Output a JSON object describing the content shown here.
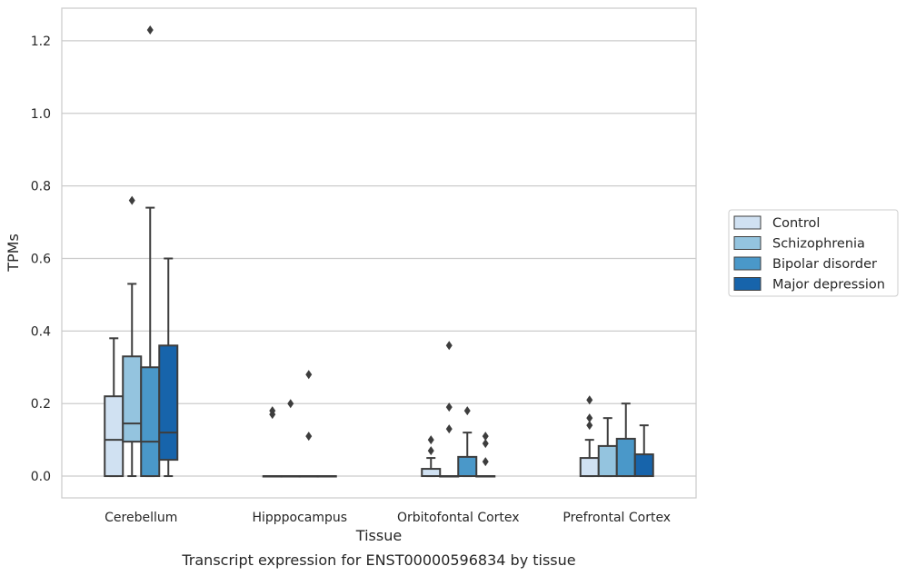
{
  "chart_data": {
    "type": "boxplot",
    "caption": "Transcript expression for ENST00000596834 by tissue",
    "xlabel": "Tissue",
    "ylabel": "TPMs",
    "ylim": [
      -0.06,
      1.29
    ],
    "yticks": [
      "0.0",
      "0.2",
      "0.4",
      "0.6",
      "0.8",
      "1.0",
      "1.2"
    ],
    "grid": "horizontal",
    "legend_position": "right-center",
    "categories": [
      "Cerebellum",
      "Hipppocampus",
      "Orbitofontal Cortex",
      "Prefrontal Cortex"
    ],
    "series": [
      {
        "name": "Control",
        "color": "#d0e1f2",
        "boxes": [
          {
            "whislo": 0.0,
            "q1": 0.0,
            "med": 0.1,
            "q3": 0.22,
            "whishi": 0.38,
            "fliers": []
          },
          {
            "whislo": 0.0,
            "q1": 0.0,
            "med": 0.0,
            "q3": 0.0,
            "whishi": 0.0,
            "fliers": [
              0.17,
              0.18
            ]
          },
          {
            "whislo": 0.0,
            "q1": 0.0,
            "med": 0.0,
            "q3": 0.02,
            "whishi": 0.05,
            "fliers": [
              0.07,
              0.1
            ]
          },
          {
            "whislo": 0.0,
            "q1": 0.0,
            "med": 0.0,
            "q3": 0.05,
            "whishi": 0.1,
            "fliers": [
              0.14,
              0.16,
              0.21
            ]
          }
        ]
      },
      {
        "name": "Schizophrenia",
        "color": "#94c4df",
        "boxes": [
          {
            "whislo": 0.0,
            "q1": 0.095,
            "med": 0.145,
            "q3": 0.33,
            "whishi": 0.53,
            "fliers": [
              0.76
            ]
          },
          {
            "whislo": 0.0,
            "q1": 0.0,
            "med": 0.0,
            "q3": 0.0,
            "whishi": 0.0,
            "fliers": [
              0.2
            ]
          },
          {
            "whislo": 0.0,
            "q1": 0.0,
            "med": 0.0,
            "q3": 0.0,
            "whishi": 0.0,
            "fliers": [
              0.13,
              0.19,
              0.36
            ]
          },
          {
            "whislo": 0.0,
            "q1": 0.0,
            "med": 0.0,
            "q3": 0.083,
            "whishi": 0.16,
            "fliers": []
          }
        ]
      },
      {
        "name": "Bipolar disorder",
        "color": "#4a98c9",
        "boxes": [
          {
            "whislo": 0.0,
            "q1": 0.0,
            "med": 0.095,
            "q3": 0.3,
            "whishi": 0.74,
            "fliers": [
              1.23
            ]
          },
          {
            "whislo": 0.0,
            "q1": 0.0,
            "med": 0.0,
            "q3": 0.0,
            "whishi": 0.0,
            "fliers": [
              0.11,
              0.28
            ]
          },
          {
            "whislo": 0.0,
            "q1": 0.0,
            "med": 0.0,
            "q3": 0.053,
            "whishi": 0.12,
            "fliers": [
              0.18
            ]
          },
          {
            "whislo": 0.0,
            "q1": 0.0,
            "med": 0.0,
            "q3": 0.103,
            "whishi": 0.2,
            "fliers": []
          }
        ]
      },
      {
        "name": "Major depression",
        "color": "#1764ab",
        "boxes": [
          {
            "whislo": 0.0,
            "q1": 0.045,
            "med": 0.12,
            "q3": 0.36,
            "whishi": 0.6,
            "fliers": []
          },
          {
            "whislo": 0.0,
            "q1": 0.0,
            "med": 0.0,
            "q3": 0.0,
            "whishi": 0.0,
            "fliers": []
          },
          {
            "whislo": 0.0,
            "q1": 0.0,
            "med": 0.0,
            "q3": 0.0,
            "whishi": 0.0,
            "fliers": [
              0.04,
              0.09,
              0.11
            ]
          },
          {
            "whislo": 0.0,
            "q1": 0.0,
            "med": 0.0,
            "q3": 0.06,
            "whishi": 0.14,
            "fliers": []
          }
        ]
      }
    ]
  }
}
